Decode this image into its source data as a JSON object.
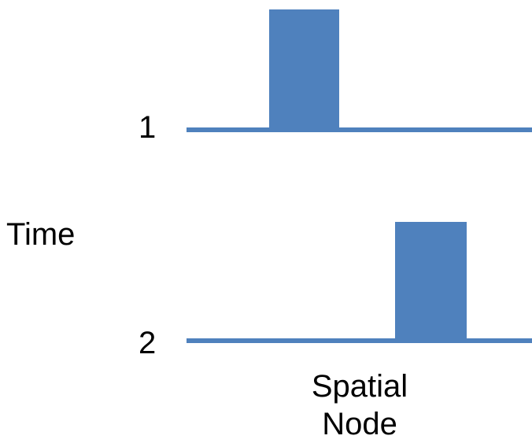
{
  "diagram": {
    "time_label": "Time",
    "spatial_label_line1": "Spatial",
    "spatial_label_line2": "Node",
    "rows": [
      {
        "label": "1",
        "pulse_position": "left-center"
      },
      {
        "label": "2",
        "pulse_position": "right-center"
      }
    ],
    "colors": {
      "pulse": "#4F81BD",
      "text": "#000000",
      "background": "#FFFFFF"
    }
  }
}
